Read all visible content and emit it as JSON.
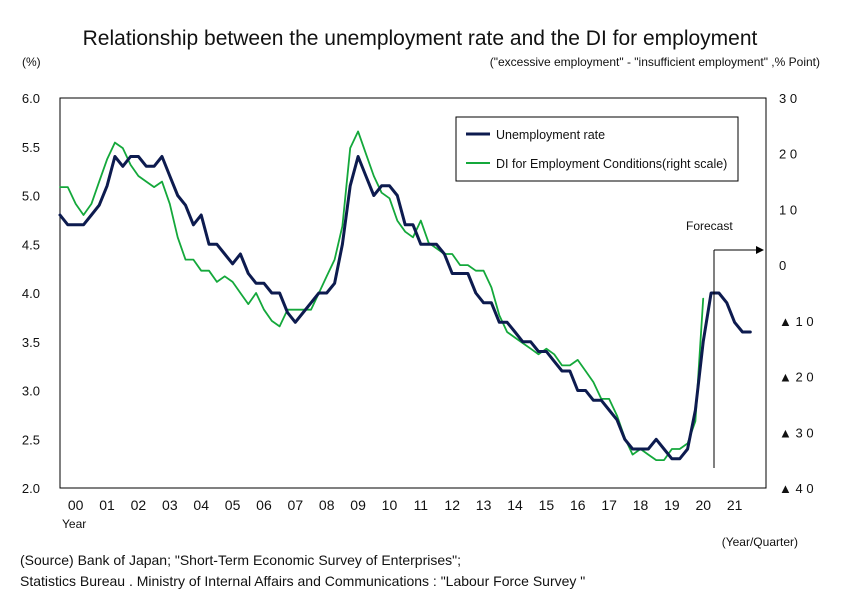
{
  "chart_data": {
    "type": "line",
    "title": "Relationship between the unemployment rate and the DI for employment",
    "left_unit": "(%)",
    "right_unit": "(\"excessive employment\" - \"insufficient employment\" ,% Point)",
    "x_label": "Year",
    "x_unit": "(Year/Quarter)",
    "forecast_label": "Forecast",
    "x_categories": [
      "00",
      "01",
      "02",
      "03",
      "04",
      "05",
      "06",
      "07",
      "08",
      "09",
      "10",
      "11",
      "12",
      "13",
      "14",
      "15",
      "16",
      "17",
      "18",
      "19",
      "20",
      "21"
    ],
    "x_range": [
      2000.0,
      2022.5
    ],
    "y_left": {
      "range": [
        2.0,
        6.0
      ],
      "ticks": [
        "6.0",
        "5.5",
        "5.0",
        "4.5",
        "4.0",
        "3.5",
        "3.0",
        "2.5",
        "2.0"
      ],
      "values": [
        6.0,
        5.5,
        5.0,
        4.5,
        4.0,
        3.5,
        3.0,
        2.5,
        2.0
      ]
    },
    "y_right": {
      "range": [
        -40,
        30
      ],
      "ticks": [
        "3 0",
        "2 0",
        "1 0",
        "0",
        "▲ 1 0",
        "▲ 2 0",
        "▲ 3 0",
        "▲ 4 0"
      ],
      "values": [
        30,
        20,
        10,
        0,
        -10,
        -20,
        -30,
        -40
      ]
    },
    "series": [
      {
        "name": "Unemployment rate",
        "axis": "left",
        "color": "#0d1b4f",
        "points": [
          [
            2000.0,
            4.8
          ],
          [
            2000.25,
            4.7
          ],
          [
            2000.5,
            4.7
          ],
          [
            2000.75,
            4.7
          ],
          [
            2001.0,
            4.8
          ],
          [
            2001.25,
            4.9
          ],
          [
            2001.5,
            5.1
          ],
          [
            2001.75,
            5.4
          ],
          [
            2002.0,
            5.3
          ],
          [
            2002.25,
            5.4
          ],
          [
            2002.5,
            5.4
          ],
          [
            2002.75,
            5.3
          ],
          [
            2003.0,
            5.3
          ],
          [
            2003.25,
            5.4
          ],
          [
            2003.5,
            5.2
          ],
          [
            2003.75,
            5.0
          ],
          [
            2004.0,
            4.9
          ],
          [
            2004.25,
            4.7
          ],
          [
            2004.5,
            4.8
          ],
          [
            2004.75,
            4.5
          ],
          [
            2005.0,
            4.5
          ],
          [
            2005.25,
            4.4
          ],
          [
            2005.5,
            4.3
          ],
          [
            2005.75,
            4.4
          ],
          [
            2006.0,
            4.2
          ],
          [
            2006.25,
            4.1
          ],
          [
            2006.5,
            4.1
          ],
          [
            2006.75,
            4.0
          ],
          [
            2007.0,
            4.0
          ],
          [
            2007.25,
            3.8
          ],
          [
            2007.5,
            3.7
          ],
          [
            2007.75,
            3.8
          ],
          [
            2008.0,
            3.9
          ],
          [
            2008.25,
            4.0
          ],
          [
            2008.5,
            4.0
          ],
          [
            2008.75,
            4.1
          ],
          [
            2009.0,
            4.5
          ],
          [
            2009.25,
            5.1
          ],
          [
            2009.5,
            5.4
          ],
          [
            2009.75,
            5.2
          ],
          [
            2010.0,
            5.0
          ],
          [
            2010.25,
            5.1
          ],
          [
            2010.5,
            5.1
          ],
          [
            2010.75,
            5.0
          ],
          [
            2011.0,
            4.7
          ],
          [
            2011.25,
            4.7
          ],
          [
            2011.5,
            4.5
          ],
          [
            2011.75,
            4.5
          ],
          [
            2012.0,
            4.5
          ],
          [
            2012.25,
            4.4
          ],
          [
            2012.5,
            4.2
          ],
          [
            2012.75,
            4.2
          ],
          [
            2013.0,
            4.2
          ],
          [
            2013.25,
            4.0
          ],
          [
            2013.5,
            3.9
          ],
          [
            2013.75,
            3.9
          ],
          [
            2014.0,
            3.7
          ],
          [
            2014.25,
            3.7
          ],
          [
            2014.5,
            3.6
          ],
          [
            2014.75,
            3.5
          ],
          [
            2015.0,
            3.5
          ],
          [
            2015.25,
            3.4
          ],
          [
            2015.5,
            3.4
          ],
          [
            2015.75,
            3.3
          ],
          [
            2016.0,
            3.2
          ],
          [
            2016.25,
            3.2
          ],
          [
            2016.5,
            3.0
          ],
          [
            2016.75,
            3.0
          ],
          [
            2017.0,
            2.9
          ],
          [
            2017.25,
            2.9
          ],
          [
            2017.5,
            2.8
          ],
          [
            2017.75,
            2.7
          ],
          [
            2018.0,
            2.5
          ],
          [
            2018.25,
            2.4
          ],
          [
            2018.5,
            2.4
          ],
          [
            2018.75,
            2.4
          ],
          [
            2019.0,
            2.5
          ],
          [
            2019.25,
            2.4
          ],
          [
            2019.5,
            2.3
          ],
          [
            2019.75,
            2.3
          ],
          [
            2020.0,
            2.4
          ],
          [
            2020.25,
            2.8
          ],
          [
            2020.5,
            3.5
          ],
          [
            2020.75,
            4.0
          ],
          [
            2021.0,
            4.0
          ],
          [
            2021.25,
            3.9
          ],
          [
            2021.5,
            3.7
          ],
          [
            2021.75,
            3.6
          ],
          [
            2022.0,
            3.6
          ]
        ]
      },
      {
        "name": "DI for Employment Conditions(right scale)",
        "axis": "right",
        "color": "#14a83b",
        "points": [
          [
            2000.0,
            14
          ],
          [
            2000.25,
            14
          ],
          [
            2000.5,
            11
          ],
          [
            2000.75,
            9
          ],
          [
            2001.0,
            11
          ],
          [
            2001.25,
            15
          ],
          [
            2001.5,
            19
          ],
          [
            2001.75,
            22
          ],
          [
            2002.0,
            21
          ],
          [
            2002.25,
            18
          ],
          [
            2002.5,
            16
          ],
          [
            2002.75,
            15
          ],
          [
            2003.0,
            14
          ],
          [
            2003.25,
            15
          ],
          [
            2003.5,
            11
          ],
          [
            2003.75,
            5
          ],
          [
            2004.0,
            1
          ],
          [
            2004.25,
            1
          ],
          [
            2004.5,
            -1
          ],
          [
            2004.75,
            -1
          ],
          [
            2005.0,
            -3
          ],
          [
            2005.25,
            -2
          ],
          [
            2005.5,
            -3
          ],
          [
            2005.75,
            -5
          ],
          [
            2006.0,
            -7
          ],
          [
            2006.25,
            -5
          ],
          [
            2006.5,
            -8
          ],
          [
            2006.75,
            -10
          ],
          [
            2007.0,
            -11
          ],
          [
            2007.25,
            -8
          ],
          [
            2007.5,
            -8
          ],
          [
            2007.75,
            -8
          ],
          [
            2008.0,
            -8
          ],
          [
            2008.25,
            -5
          ],
          [
            2008.5,
            -2
          ],
          [
            2008.75,
            1
          ],
          [
            2009.0,
            7
          ],
          [
            2009.25,
            21
          ],
          [
            2009.5,
            24
          ],
          [
            2009.75,
            20
          ],
          [
            2010.0,
            16
          ],
          [
            2010.25,
            13
          ],
          [
            2010.5,
            12
          ],
          [
            2010.75,
            8
          ],
          [
            2011.0,
            6
          ],
          [
            2011.25,
            5
          ],
          [
            2011.5,
            8
          ],
          [
            2011.75,
            4
          ],
          [
            2012.0,
            3
          ],
          [
            2012.25,
            2
          ],
          [
            2012.5,
            2
          ],
          [
            2012.75,
            0
          ],
          [
            2013.0,
            0
          ],
          [
            2013.25,
            -1
          ],
          [
            2013.5,
            -1
          ],
          [
            2013.75,
            -4
          ],
          [
            2014.0,
            -9
          ],
          [
            2014.25,
            -12
          ],
          [
            2014.5,
            -13
          ],
          [
            2014.75,
            -14
          ],
          [
            2015.0,
            -15
          ],
          [
            2015.25,
            -16
          ],
          [
            2015.5,
            -15
          ],
          [
            2015.75,
            -16
          ],
          [
            2016.0,
            -18
          ],
          [
            2016.25,
            -18
          ],
          [
            2016.5,
            -17
          ],
          [
            2016.75,
            -19
          ],
          [
            2017.0,
            -21
          ],
          [
            2017.25,
            -24
          ],
          [
            2017.5,
            -24
          ],
          [
            2017.75,
            -27
          ],
          [
            2018.0,
            -31
          ],
          [
            2018.25,
            -34
          ],
          [
            2018.5,
            -33
          ],
          [
            2018.75,
            -34
          ],
          [
            2019.0,
            -35
          ],
          [
            2019.25,
            -35
          ],
          [
            2019.5,
            -33
          ],
          [
            2019.75,
            -33
          ],
          [
            2020.0,
            -32
          ],
          [
            2020.25,
            -28
          ],
          [
            2020.5,
            -6
          ]
        ]
      }
    ],
    "source_lines": [
      "(Source) Bank of Japan; \"Short-Term Economic Survey of Enterprises\";",
      "Statistics Bureau . Ministry of Internal Affairs and Communications : \"Labour Force Survey \""
    ]
  }
}
